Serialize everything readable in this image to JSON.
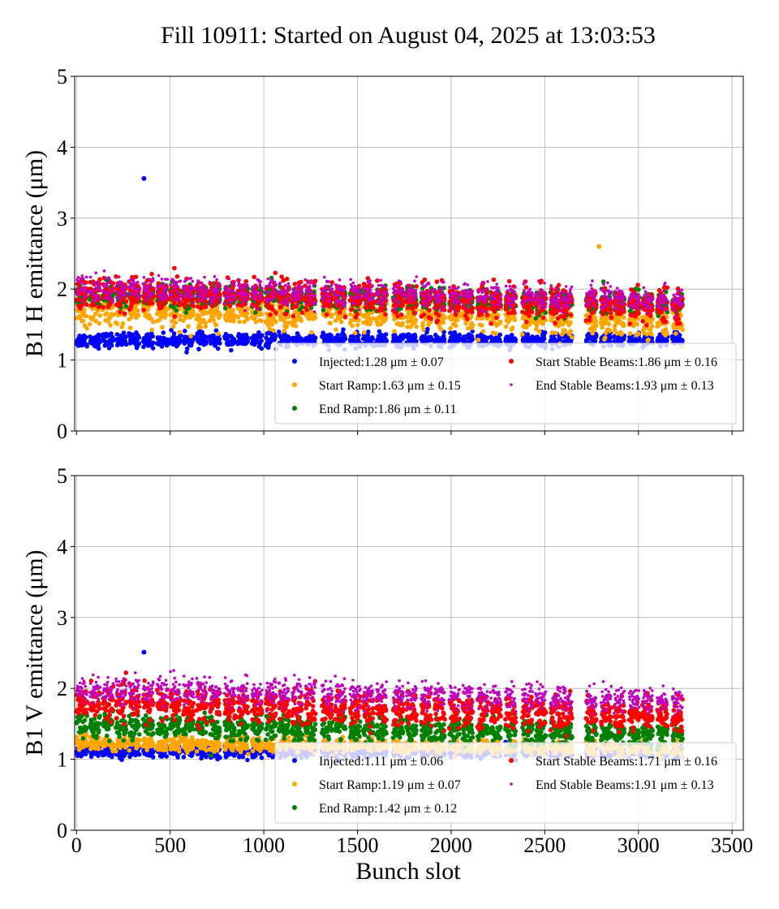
{
  "figure": {
    "title": "Fill 10911: Started on August 04, 2025 at 13:03:53",
    "xlabel": "Bunch slot"
  },
  "chart_data": [
    {
      "type": "scatter",
      "ylabel": "B1 H emittance (μm)",
      "xlim": [
        -10,
        3560
      ],
      "ylim": [
        0,
        5
      ],
      "xticks": [
        0,
        500,
        1000,
        1500,
        2000,
        2500,
        3000,
        3500
      ],
      "yticks": [
        0,
        1,
        2,
        3,
        4,
        5
      ],
      "grid": true,
      "legend_position": "lower-right",
      "outliers": [
        {
          "series": "Injected",
          "x": 360,
          "y": 3.56
        },
        {
          "series": "Start Ramp",
          "x": 2790,
          "y": 2.6
        }
      ],
      "series": [
        {
          "name": "Injected",
          "label": "Injected:1.28 μm ± 0.07",
          "color": "#0000ff",
          "mean": 1.28,
          "std": 0.07
        },
        {
          "name": "Start Ramp",
          "label": "Start Ramp:1.63 μm ± 0.15",
          "color": "#ffa500",
          "mean": 1.63,
          "std": 0.15
        },
        {
          "name": "End Ramp",
          "label": "End Ramp:1.86 μm ± 0.11",
          "color": "#008000",
          "mean": 1.86,
          "std": 0.11
        },
        {
          "name": "Start Stable Beams",
          "label": "Start Stable Beams:1.86 μm ± 0.16",
          "color": "#ff0000",
          "mean": 1.86,
          "std": 0.16
        },
        {
          "name": "End Stable Beams",
          "label": "End Stable Beams:1.93 μm ± 0.13",
          "color": "#bf00bf",
          "mean": 1.93,
          "std": 0.13
        }
      ]
    },
    {
      "type": "scatter",
      "ylabel": "B1 V emittance (μm)",
      "xlim": [
        -10,
        3560
      ],
      "ylim": [
        0,
        5
      ],
      "xticks": [
        0,
        500,
        1000,
        1500,
        2000,
        2500,
        3000,
        3500
      ],
      "yticks": [
        0,
        1,
        2,
        3,
        4,
        5
      ],
      "grid": true,
      "legend_position": "lower-right",
      "outliers": [
        {
          "series": "Injected",
          "x": 360,
          "y": 2.51
        }
      ],
      "series": [
        {
          "name": "Injected",
          "label": "Injected:1.11 μm ± 0.06",
          "color": "#0000ff",
          "mean": 1.11,
          "std": 0.06
        },
        {
          "name": "Start Ramp",
          "label": "Start Ramp:1.19 μm ± 0.07",
          "color": "#ffa500",
          "mean": 1.19,
          "std": 0.07
        },
        {
          "name": "End Ramp",
          "label": "End Ramp:1.42 μm ± 0.12",
          "color": "#008000",
          "mean": 1.42,
          "std": 0.12
        },
        {
          "name": "Start Stable Beams",
          "label": "Start Stable Beams:1.71 μm ± 0.16",
          "color": "#ff0000",
          "mean": 1.71,
          "std": 0.16
        },
        {
          "name": "End Stable Beams",
          "label": "End Stable Beams:1.91 μm ± 0.13",
          "color": "#bf00bf",
          "mean": 1.91,
          "std": 0.13
        }
      ]
    }
  ],
  "bunch_trains_start": [
    0,
    70,
    140,
    210,
    280,
    355,
    430,
    500,
    570,
    640,
    710,
    790,
    860,
    935,
    1010,
    1080,
    1150,
    1220,
    1310,
    1380,
    1460,
    1530,
    1600,
    1690,
    1760,
    1840,
    1910,
    1990,
    2060,
    2140,
    2210,
    2290,
    2380,
    2450,
    2530,
    2590,
    2720,
    2800,
    2870,
    2950,
    3020,
    3100,
    3180
  ],
  "bunch_trains_length": 55
}
